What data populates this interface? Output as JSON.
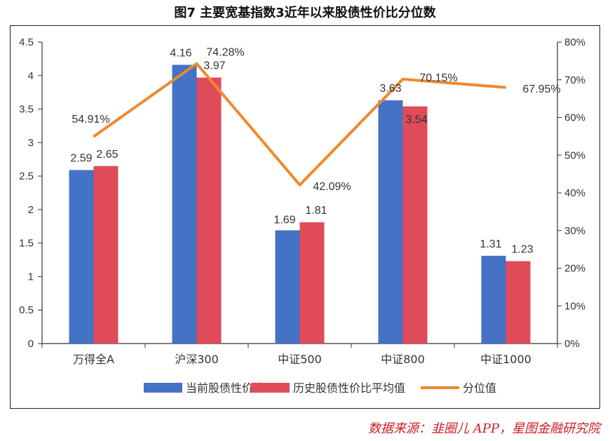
{
  "title": "图7 主要宽基指数3近年以来股债性价比分位数",
  "source": "数据来源：韭圈儿 APP，星图金融研究院",
  "colors": {
    "current": "#4472c4",
    "average": "#e04b5a",
    "percentile": "#ed8a2e"
  },
  "chart_data": {
    "type": "bar",
    "categories": [
      "万得全A",
      "沪深300",
      "中证500",
      "中证800",
      "中证1000"
    ],
    "series": [
      {
        "name": "当前股债性价比",
        "type": "bar",
        "axis": "left",
        "values": [
          2.59,
          4.16,
          1.69,
          3.63,
          1.31
        ],
        "labels": [
          "2.59",
          "4.16",
          "1.69",
          "3.63",
          "1.31"
        ]
      },
      {
        "name": "历史股债性价比平均值",
        "type": "bar",
        "axis": "left",
        "values": [
          2.65,
          3.97,
          1.81,
          3.54,
          1.23
        ],
        "labels": [
          "2.65",
          "3.97",
          "1.81",
          "3.54",
          "1.23"
        ]
      },
      {
        "name": "分位值",
        "type": "line",
        "axis": "right",
        "values": [
          54.91,
          74.28,
          42.09,
          70.15,
          67.95
        ],
        "labels": [
          "54.91%",
          "74.28%",
          "42.09%",
          "70.15%",
          "67.95%"
        ]
      }
    ],
    "ylim": [
      0,
      4.5
    ],
    "y_ticks": [
      "0",
      "0.5",
      "1",
      "1.5",
      "2",
      "2.5",
      "3",
      "3.5",
      "4",
      "4.5"
    ],
    "y2lim": [
      0,
      80
    ],
    "y2_ticks": [
      "0%",
      "10%",
      "20%",
      "30%",
      "40%",
      "50%",
      "60%",
      "70%",
      "80%"
    ],
    "grid": false,
    "legend_position": "bottom"
  }
}
